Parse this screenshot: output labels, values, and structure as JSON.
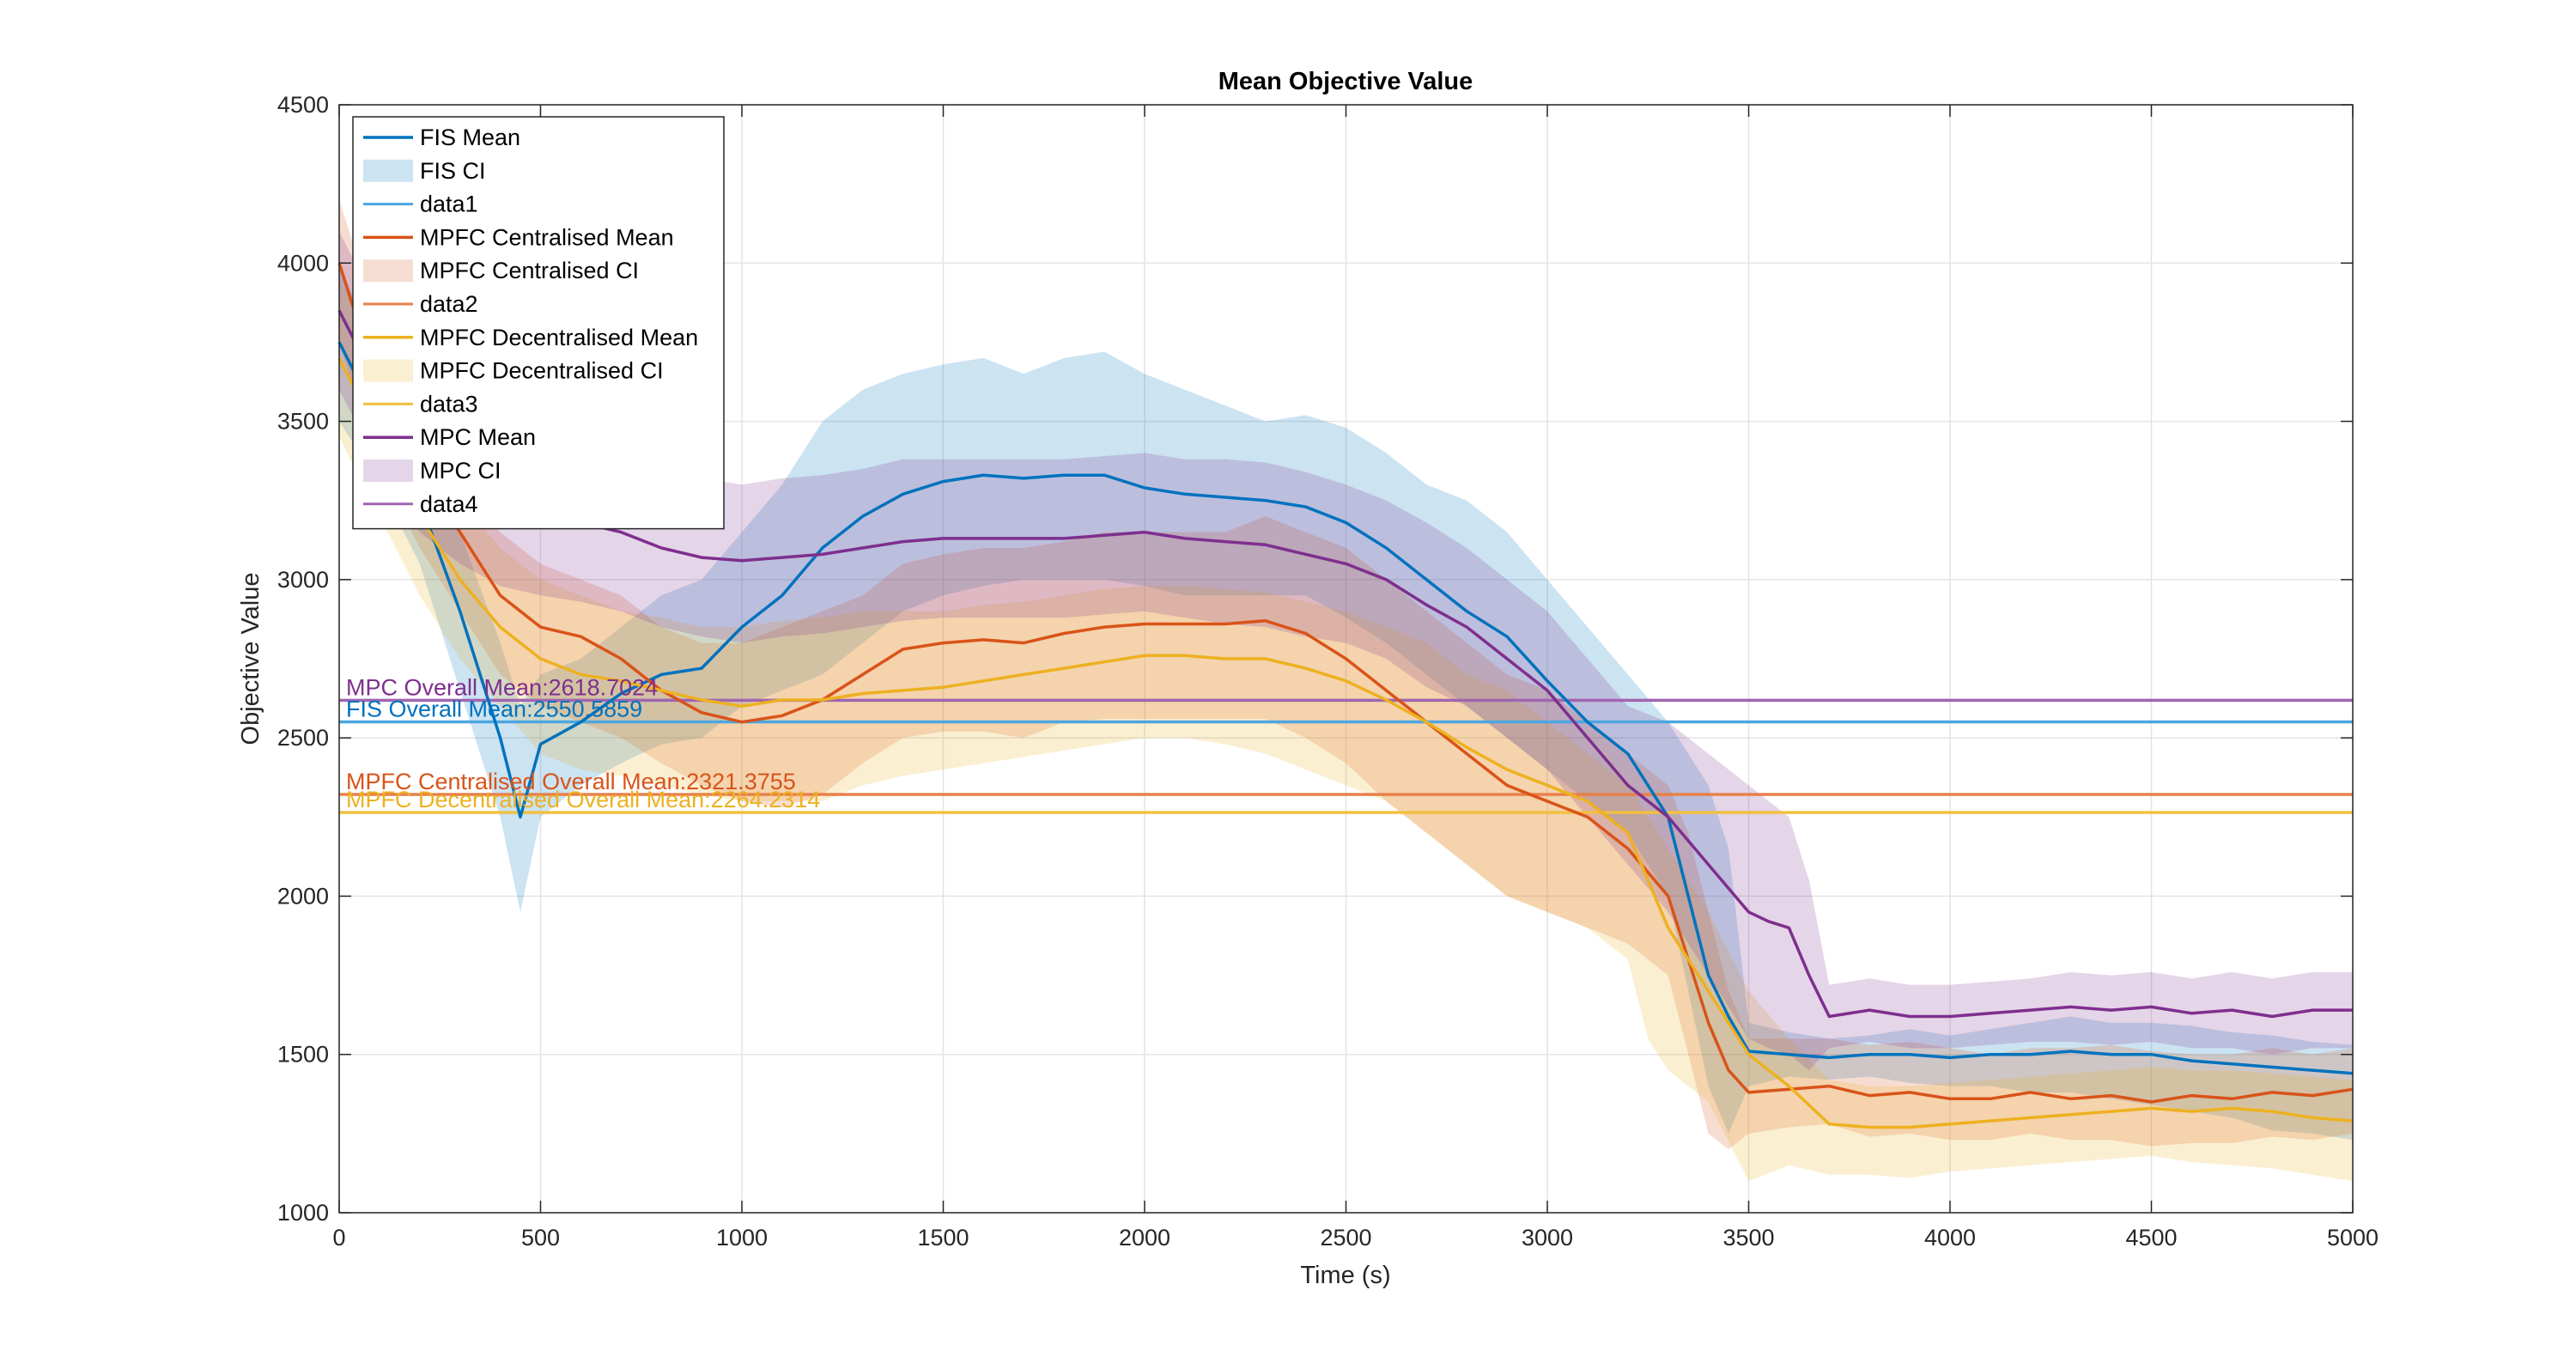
{
  "chart_data": {
    "type": "line",
    "title": "Mean Objective Value",
    "xlabel": "Time (s)",
    "ylabel": "Objective Value",
    "xlim": [
      0,
      5000
    ],
    "ylim": [
      1000,
      4500
    ],
    "xticks": [
      0,
      500,
      1000,
      1500,
      2000,
      2500,
      3000,
      3500,
      4000,
      4500,
      5000
    ],
    "yticks": [
      1000,
      1500,
      2000,
      2500,
      3000,
      3500,
      4000,
      4500
    ],
    "grid": true,
    "legend_position": "top-left",
    "series": [
      {
        "key": "fis",
        "mean_name": "FIS Mean",
        "ci_name": "FIS CI",
        "overall_name": "data1",
        "color": "#0072BD",
        "overall_color": "#4DA6E0",
        "x": [
          0,
          100,
          200,
          300,
          400,
          450,
          500,
          600,
          700,
          800,
          900,
          1000,
          1100,
          1200,
          1300,
          1400,
          1500,
          1600,
          1700,
          1800,
          1900,
          2000,
          2100,
          2200,
          2300,
          2400,
          2500,
          2600,
          2700,
          2800,
          2900,
          3000,
          3100,
          3200,
          3300,
          3400,
          3450,
          3500,
          3600,
          3700,
          3800,
          3900,
          4000,
          4100,
          4200,
          4300,
          4400,
          4500,
          4600,
          4700,
          4800,
          4900,
          5000
        ],
        "mean": [
          3750,
          3500,
          3250,
          2900,
          2500,
          2250,
          2480,
          2550,
          2640,
          2700,
          2720,
          2850,
          2950,
          3100,
          3200,
          3270,
          3310,
          3330,
          3320,
          3330,
          3330,
          3290,
          3270,
          3260,
          3250,
          3230,
          3180,
          3100,
          3000,
          2900,
          2820,
          2680,
          2550,
          2450,
          2250,
          1750,
          1620,
          1510,
          1500,
          1490,
          1500,
          1500,
          1490,
          1500,
          1500,
          1510,
          1500,
          1500,
          1480,
          1470,
          1460,
          1450,
          1440
        ],
        "upper": [
          4000,
          3700,
          3450,
          3150,
          2800,
          2600,
          2700,
          2750,
          2850,
          2950,
          3000,
          3150,
          3300,
          3500,
          3600,
          3650,
          3680,
          3700,
          3650,
          3700,
          3720,
          3650,
          3600,
          3550,
          3500,
          3520,
          3480,
          3400,
          3300,
          3250,
          3150,
          3000,
          2850,
          2700,
          2550,
          2350,
          2150,
          1600,
          1570,
          1550,
          1560,
          1580,
          1560,
          1580,
          1600,
          1620,
          1600,
          1600,
          1590,
          1570,
          1560,
          1540,
          1530
        ],
        "lower": [
          3500,
          3300,
          3050,
          2650,
          2250,
          1950,
          2250,
          2350,
          2420,
          2480,
          2500,
          2600,
          2650,
          2700,
          2800,
          2900,
          2950,
          2980,
          3000,
          3000,
          3000,
          2980,
          2950,
          2950,
          2950,
          2950,
          2880,
          2800,
          2700,
          2600,
          2500,
          2400,
          2300,
          2200,
          2000,
          1400,
          1250,
          1400,
          1430,
          1420,
          1430,
          1410,
          1400,
          1400,
          1380,
          1380,
          1360,
          1340,
          1320,
          1300,
          1260,
          1250,
          1230
        ],
        "overall_mean": 2550.5859,
        "overall_label": "FIS Overall Mean:2550.5859"
      },
      {
        "key": "mpfcc",
        "mean_name": "MPFC Centralised Mean",
        "ci_name": "MPFC Centralised CI",
        "overall_name": "data2",
        "color": "#D95319",
        "overall_color": "#E8804A",
        "x": [
          0,
          100,
          200,
          300,
          400,
          500,
          600,
          700,
          800,
          900,
          1000,
          1100,
          1200,
          1300,
          1400,
          1500,
          1600,
          1700,
          1800,
          1900,
          2000,
          2100,
          2200,
          2300,
          2400,
          2500,
          2600,
          2700,
          2800,
          2900,
          3000,
          3100,
          3200,
          3300,
          3350,
          3400,
          3450,
          3500,
          3600,
          3700,
          3800,
          3900,
          4000,
          4100,
          4200,
          4300,
          4400,
          4500,
          4600,
          4700,
          4800,
          4900,
          5000
        ],
        "mean": [
          4000,
          3600,
          3350,
          3150,
          2950,
          2850,
          2820,
          2750,
          2650,
          2580,
          2550,
          2570,
          2620,
          2700,
          2780,
          2800,
          2810,
          2800,
          2830,
          2850,
          2860,
          2860,
          2860,
          2870,
          2830,
          2750,
          2650,
          2550,
          2450,
          2350,
          2300,
          2250,
          2150,
          2000,
          1800,
          1600,
          1450,
          1380,
          1390,
          1400,
          1370,
          1380,
          1360,
          1360,
          1380,
          1360,
          1370,
          1350,
          1370,
          1360,
          1380,
          1370,
          1390
        ],
        "upper": [
          4200,
          3800,
          3550,
          3350,
          3150,
          3050,
          3000,
          2950,
          2850,
          2800,
          2800,
          2850,
          2900,
          2950,
          3050,
          3080,
          3100,
          3100,
          3120,
          3150,
          3150,
          3150,
          3150,
          3200,
          3150,
          3100,
          3000,
          2900,
          2800,
          2700,
          2650,
          2550,
          2450,
          2350,
          2200,
          1950,
          1700,
          1550,
          1550,
          1550,
          1530,
          1540,
          1520,
          1500,
          1520,
          1520,
          1530,
          1510,
          1500,
          1500,
          1520,
          1500,
          1520
        ],
        "lower": [
          3750,
          3350,
          3100,
          2900,
          2700,
          2600,
          2550,
          2500,
          2420,
          2350,
          2300,
          2280,
          2320,
          2420,
          2500,
          2520,
          2520,
          2500,
          2550,
          2560,
          2560,
          2560,
          2560,
          2560,
          2500,
          2420,
          2300,
          2200,
          2100,
          2000,
          1950,
          1900,
          1850,
          1750,
          1500,
          1250,
          1200,
          1250,
          1270,
          1280,
          1240,
          1250,
          1230,
          1230,
          1250,
          1230,
          1230,
          1210,
          1220,
          1220,
          1240,
          1230,
          1250
        ],
        "overall_mean": 2321.3755,
        "overall_label": "MPFC Centralised Overall Mean:2321.3755"
      },
      {
        "key": "mpfcd",
        "mean_name": "MPFC Decentralised Mean",
        "ci_name": "MPFC Decentralised CI",
        "overall_name": "data3",
        "color": "#EDB120",
        "overall_color": "#F2C040",
        "x": [
          0,
          100,
          200,
          300,
          400,
          500,
          600,
          700,
          800,
          900,
          1000,
          1100,
          1200,
          1300,
          1400,
          1500,
          1600,
          1700,
          1800,
          1900,
          2000,
          2100,
          2200,
          2300,
          2400,
          2500,
          2600,
          2700,
          2800,
          2900,
          3000,
          3100,
          3200,
          3250,
          3300,
          3350,
          3400,
          3500,
          3600,
          3700,
          3800,
          3900,
          4000,
          4100,
          4200,
          4300,
          4400,
          4500,
          4600,
          4700,
          4800,
          4900,
          5000
        ],
        "mean": [
          3700,
          3450,
          3200,
          3000,
          2850,
          2750,
          2700,
          2680,
          2650,
          2620,
          2600,
          2620,
          2620,
          2640,
          2650,
          2660,
          2680,
          2700,
          2720,
          2740,
          2760,
          2760,
          2750,
          2750,
          2720,
          2680,
          2620,
          2550,
          2470,
          2400,
          2350,
          2300,
          2200,
          2050,
          1900,
          1800,
          1700,
          1500,
          1400,
          1280,
          1270,
          1270,
          1280,
          1290,
          1300,
          1310,
          1320,
          1330,
          1320,
          1330,
          1320,
          1300,
          1290
        ],
        "upper": [
          3950,
          3700,
          3450,
          3250,
          3100,
          3000,
          2950,
          2900,
          2880,
          2850,
          2850,
          2870,
          2880,
          2900,
          2900,
          2900,
          2920,
          2930,
          2950,
          2970,
          2980,
          2980,
          2970,
          2960,
          2930,
          2900,
          2850,
          2800,
          2700,
          2650,
          2550,
          2450,
          2350,
          2250,
          2150,
          2050,
          1950,
          1700,
          1550,
          1420,
          1400,
          1400,
          1410,
          1420,
          1430,
          1440,
          1450,
          1460,
          1450,
          1450,
          1440,
          1430,
          1420
        ],
        "lower": [
          3450,
          3200,
          2950,
          2750,
          2600,
          2450,
          2400,
          2380,
          2350,
          2320,
          2300,
          2300,
          2300,
          2350,
          2380,
          2400,
          2420,
          2440,
          2460,
          2480,
          2500,
          2500,
          2480,
          2450,
          2400,
          2350,
          2300,
          2200,
          2100,
          2000,
          1950,
          1900,
          1800,
          1550,
          1450,
          1400,
          1350,
          1100,
          1150,
          1120,
          1120,
          1110,
          1130,
          1140,
          1150,
          1160,
          1170,
          1180,
          1160,
          1150,
          1140,
          1120,
          1100
        ],
        "overall_mean": 2264.2314,
        "overall_label": "MPFC Decentralised Overall Mean:2264.2314"
      },
      {
        "key": "mpc",
        "mean_name": "MPC Mean",
        "ci_name": "MPC CI",
        "overall_name": "data4",
        "color": "#7E2F8E",
        "overall_color": "#A065B0",
        "x": [
          0,
          100,
          200,
          300,
          400,
          500,
          600,
          700,
          800,
          900,
          1000,
          1100,
          1200,
          1300,
          1400,
          1500,
          1600,
          1700,
          1800,
          1900,
          2000,
          2100,
          2200,
          2300,
          2400,
          2500,
          2600,
          2700,
          2800,
          2900,
          3000,
          3100,
          3200,
          3300,
          3400,
          3500,
          3550,
          3600,
          3650,
          3700,
          3800,
          3900,
          4000,
          4100,
          4200,
          4300,
          4400,
          4500,
          4600,
          4700,
          4800,
          4900,
          5000
        ],
        "mean": [
          3850,
          3600,
          3400,
          3300,
          3230,
          3200,
          3180,
          3150,
          3100,
          3070,
          3060,
          3070,
          3080,
          3100,
          3120,
          3130,
          3130,
          3130,
          3130,
          3140,
          3150,
          3130,
          3120,
          3110,
          3080,
          3050,
          3000,
          2920,
          2850,
          2750,
          2650,
          2500,
          2350,
          2250,
          2100,
          1950,
          1920,
          1900,
          1750,
          1620,
          1640,
          1620,
          1620,
          1630,
          1640,
          1650,
          1640,
          1650,
          1630,
          1640,
          1620,
          1640,
          1640
        ],
        "upper": [
          4100,
          3850,
          3650,
          3550,
          3480,
          3450,
          3400,
          3380,
          3350,
          3320,
          3300,
          3320,
          3330,
          3350,
          3380,
          3380,
          3380,
          3380,
          3380,
          3390,
          3400,
          3380,
          3380,
          3370,
          3340,
          3300,
          3250,
          3180,
          3100,
          3000,
          2900,
          2750,
          2600,
          2550,
          2450,
          2350,
          2300,
          2250,
          2050,
          1720,
          1740,
          1720,
          1720,
          1730,
          1740,
          1760,
          1750,
          1760,
          1740,
          1760,
          1740,
          1760,
          1760
        ],
        "lower": [
          3600,
          3350,
          3150,
          3050,
          2980,
          2950,
          2930,
          2900,
          2850,
          2820,
          2800,
          2820,
          2830,
          2850,
          2870,
          2880,
          2880,
          2880,
          2880,
          2890,
          2900,
          2880,
          2860,
          2850,
          2820,
          2800,
          2750,
          2660,
          2600,
          2500,
          2400,
          2250,
          2100,
          1950,
          1750,
          1550,
          1520,
          1500,
          1450,
          1520,
          1540,
          1520,
          1520,
          1530,
          1540,
          1540,
          1530,
          1540,
          1520,
          1520,
          1500,
          1520,
          1520
        ],
        "overall_mean": 2618.7024,
        "overall_label": "MPC Overall Mean:2618.7024"
      }
    ]
  }
}
